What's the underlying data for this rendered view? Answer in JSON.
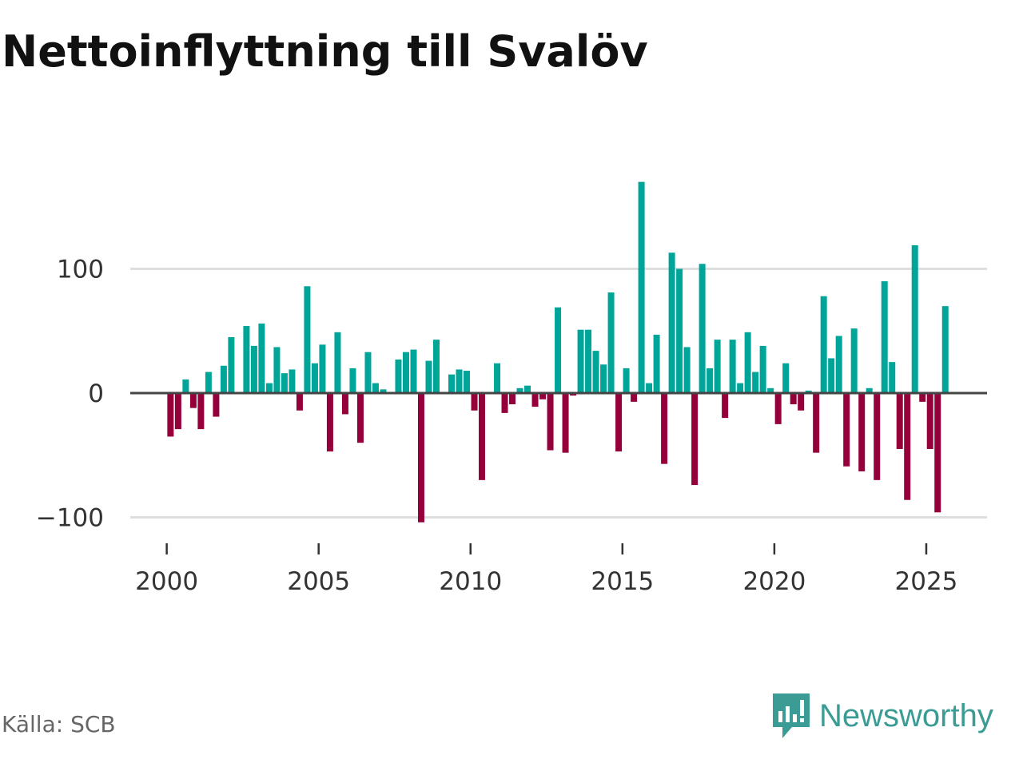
{
  "title": "Nettoinflyttning till Svalöv",
  "source": "Källa: SCB",
  "brand": "Newsworthy",
  "colors": {
    "positive": "#00a599",
    "negative": "#95003a",
    "brand": "#3a9c94"
  },
  "chart_data": {
    "type": "bar",
    "title": "Nettoinflyttning till Svalöv",
    "xlabel": "",
    "ylabel": "",
    "x_unit": "quarter",
    "start": "2000 Q1",
    "ylim": [
      -104,
      170
    ],
    "xlim": [
      1998.8,
      2027.0
    ],
    "yticks": [
      -100,
      0,
      100
    ],
    "ytick_labels": [
      "−100",
      "0",
      "100"
    ],
    "xticks": [
      2000,
      2005,
      2010,
      2015,
      2020,
      2025
    ],
    "xtick_labels": [
      "2000",
      "2005",
      "2010",
      "2015",
      "2020",
      "2025"
    ],
    "grid": true,
    "values": [
      -35,
      -29,
      11,
      -12,
      -29,
      17,
      -19,
      22,
      45,
      0,
      54,
      38,
      56,
      8,
      37,
      16,
      19,
      -14,
      86,
      24,
      39,
      -47,
      49,
      -17,
      20,
      -40,
      33,
      8,
      3,
      0,
      27,
      33,
      35,
      -104,
      26,
      43,
      0,
      15,
      19,
      18,
      -14,
      -70,
      0,
      24,
      -16,
      -9,
      4,
      6,
      -11,
      -5,
      -46,
      69,
      -48,
      -2,
      51,
      51,
      34,
      23,
      81,
      -47,
      20,
      -7,
      170,
      8,
      47,
      -57,
      113,
      100,
      37,
      -74,
      104,
      20,
      43,
      -20,
      43,
      8,
      49,
      17,
      38,
      4,
      -25,
      24,
      -9,
      -14,
      2,
      -48,
      78,
      28,
      46,
      -59,
      52,
      -63,
      4,
      -70,
      90,
      25,
      -45,
      -86,
      119,
      -7,
      -45,
      -96,
      70
    ]
  }
}
